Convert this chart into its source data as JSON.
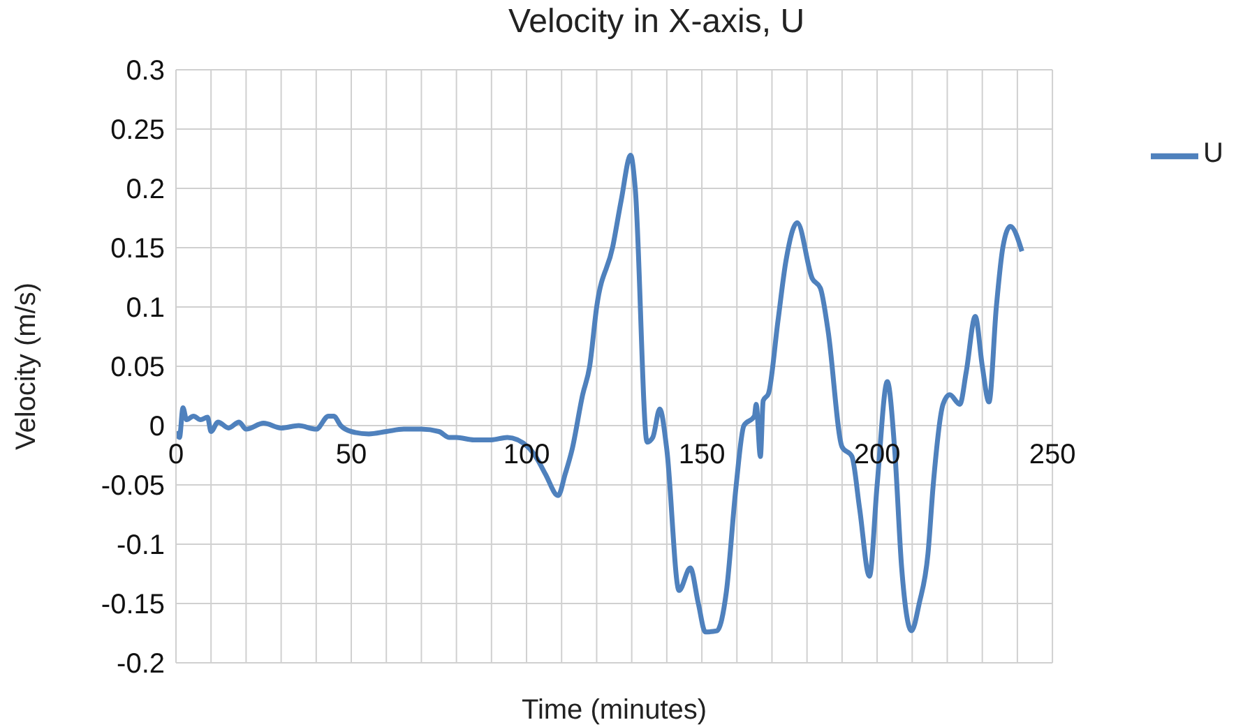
{
  "chart_data": {
    "type": "line",
    "title": "Velocity in X-axis, U",
    "xlabel": "Time (minutes)",
    "ylabel": "Velocity (m/s)",
    "xlim": [
      0,
      250
    ],
    "xticks": [
      0,
      {
        "value": 10,
        "label": null
      },
      {
        "value": 20,
        "label": null
      },
      {
        "value": 30,
        "label": null
      },
      {
        "value": 40,
        "label": null
      },
      50,
      {
        "value": 60,
        "label": null
      },
      {
        "value": 70,
        "label": null
      },
      {
        "value": 80,
        "label": null
      },
      {
        "value": 90,
        "label": null
      },
      100,
      {
        "value": 110,
        "label": null
      },
      {
        "value": 120,
        "label": null
      },
      {
        "value": 130,
        "label": null
      },
      {
        "value": 140,
        "label": null
      },
      150,
      {
        "value": 160,
        "label": null
      },
      {
        "value": 170,
        "label": null
      },
      {
        "value": 180,
        "label": null
      },
      {
        "value": 190,
        "label": null
      },
      200,
      {
        "value": 210,
        "label": null
      },
      {
        "value": 220,
        "label": null
      },
      {
        "value": 230,
        "label": null
      },
      {
        "value": 240,
        "label": null
      },
      250
    ],
    "ylim": [
      -0.2,
      0.3
    ],
    "yticks": [
      -0.2,
      -0.15,
      -0.1,
      -0.05,
      0,
      0.05,
      0.1,
      0.15,
      0.2,
      0.25,
      0.3
    ],
    "grid": true,
    "legend": "right",
    "marker": "none",
    "line_style": "solid",
    "series": [
      {
        "name": "U",
        "color": "#4f81bd",
        "x": [
          0,
          1,
          2,
          3,
          5,
          7,
          9,
          10,
          12,
          15,
          18,
          20,
          25,
          30,
          35,
          40,
          43.5,
          45,
          47,
          50,
          55,
          60,
          65,
          70,
          75,
          78,
          80,
          85,
          90,
          94.5,
          100.4,
          103,
          105.4,
          109,
          111,
          113,
          116,
          118,
          120,
          124.6,
          127,
          129.7,
          131,
          134.4,
          136,
          138,
          140,
          143.5,
          146.7,
          149,
          151,
          154.3,
          157,
          159.7,
          162,
          165,
          165.5,
          166.7,
          167.5,
          169,
          171.7,
          174,
          177.2,
          181.5,
          183.8,
          186,
          190,
          192.8,
          195,
          197.8,
          200,
          202.9,
          205,
          207,
          209.8,
          212,
          214.5,
          216,
          218.8,
          220.7,
          223.6,
          225.4,
          228,
          230,
          231.9,
          234,
          235.9,
          238,
          241.3
        ],
        "values": [
          -0.005,
          -0.01,
          0.015,
          0.005,
          0.008,
          0.005,
          0.007,
          -0.005,
          0.003,
          -0.002,
          0.003,
          -0.003,
          0.002,
          -0.002,
          0,
          -0.003,
          0.008,
          0.008,
          0,
          -0.005,
          -0.007,
          -0.005,
          -0.003,
          -0.003,
          -0.005,
          -0.01,
          -0.01,
          -0.012,
          -0.012,
          -0.01,
          -0.018,
          -0.028,
          -0.041,
          -0.059,
          -0.041,
          -0.02,
          0.026,
          0.05,
          0.1,
          0.151,
          0.19,
          0.228,
          0.2,
          -0.014,
          -0.01,
          0.014,
          -0.02,
          -0.139,
          -0.12,
          -0.15,
          -0.174,
          -0.173,
          -0.14,
          -0.053,
          0,
          0.008,
          0.018,
          -0.026,
          0.021,
          0.027,
          0.088,
          0.139,
          0.171,
          0.124,
          0.116,
          0.08,
          -0.018,
          -0.026,
          -0.07,
          -0.127,
          -0.05,
          0.037,
          -0.02,
          -0.12,
          -0.173,
          -0.15,
          -0.108,
          -0.05,
          0.018,
          0.026,
          0.018,
          0.045,
          0.092,
          0.05,
          0.02,
          0.1,
          0.151,
          0.168,
          0.147
        ]
      }
    ]
  }
}
